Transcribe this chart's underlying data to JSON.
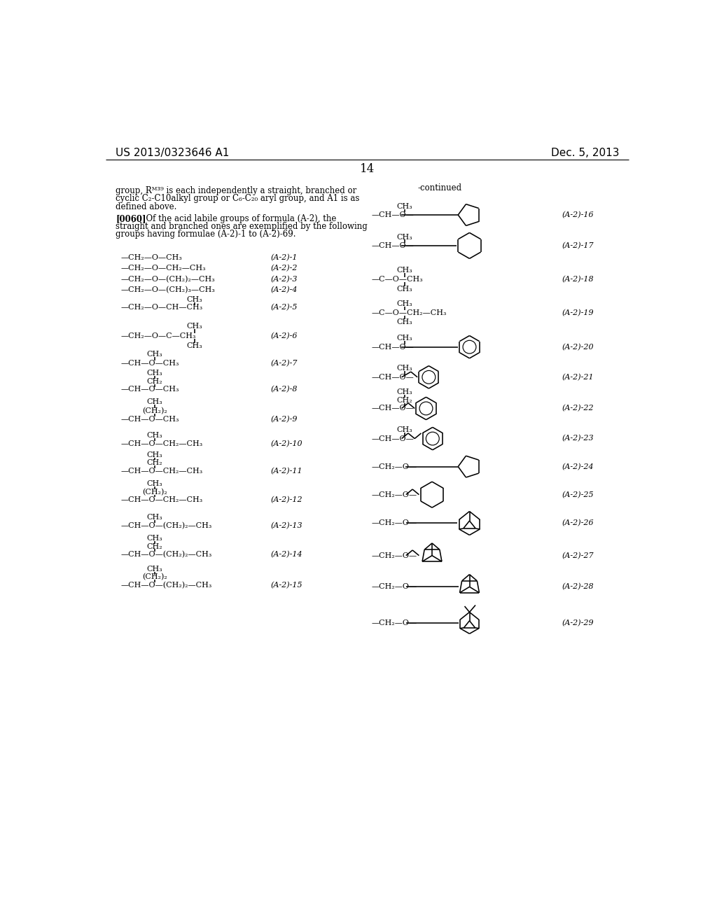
{
  "title_left": "US 2013/0323646 A1",
  "title_right": "Dec. 5, 2013",
  "page_number": "14",
  "bg": "#ffffff",
  "fg": "#000000"
}
